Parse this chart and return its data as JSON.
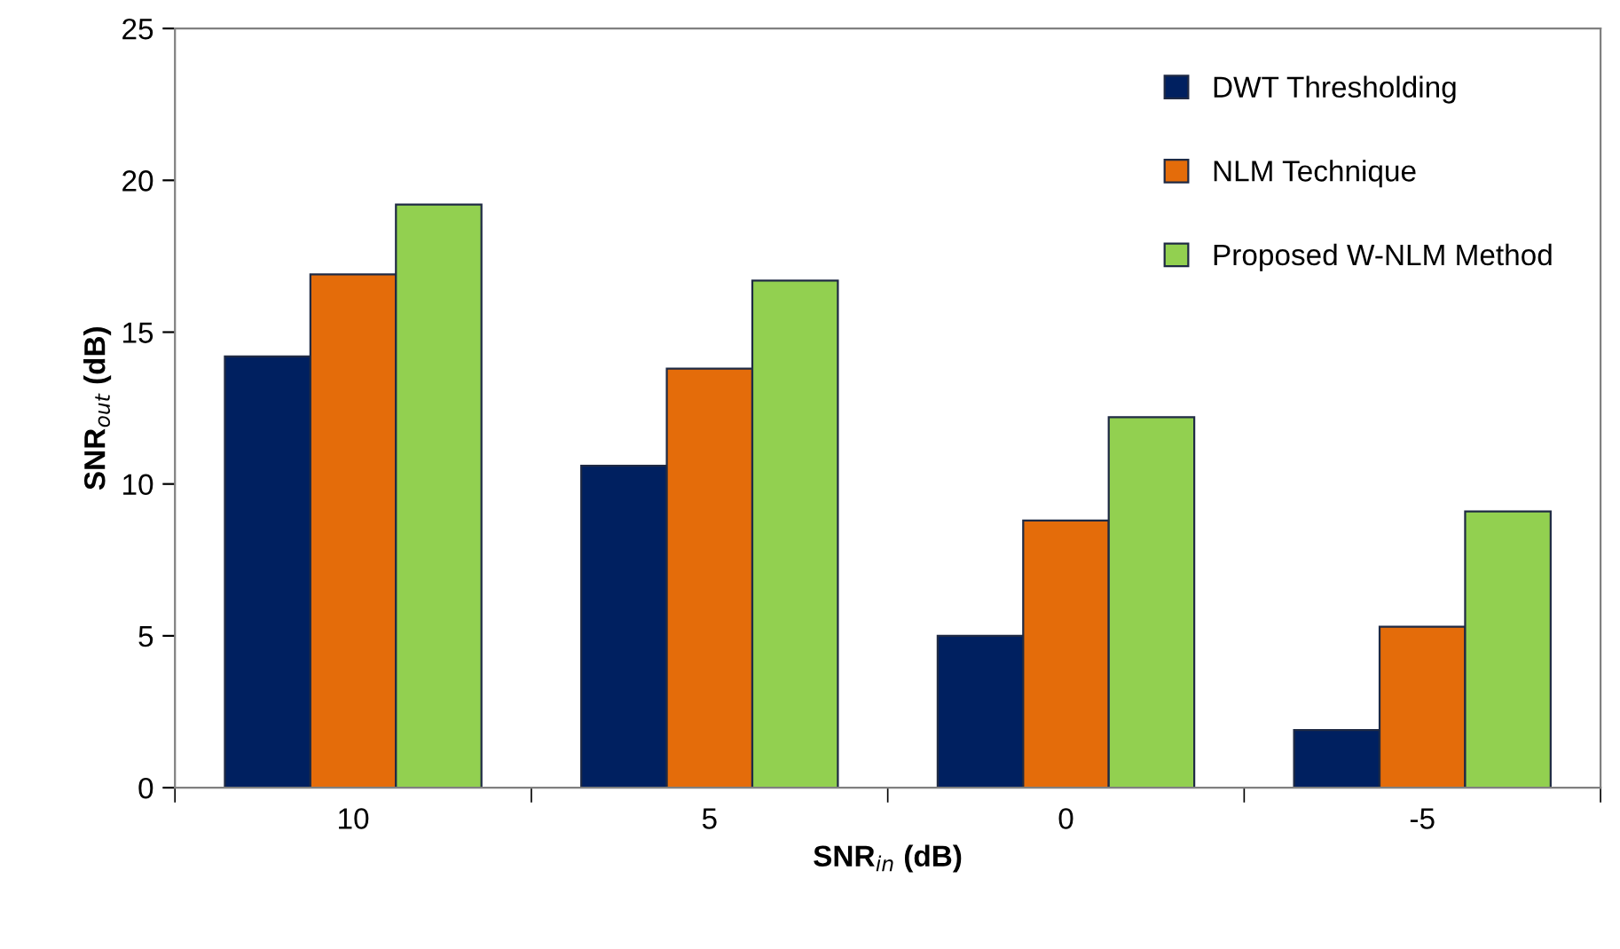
{
  "chart_data": {
    "type": "bar",
    "xlabel": "SNR$_{in}$ (dB)",
    "ylabel": "SNR$_{out}$ (dB)",
    "categories": [
      "10",
      "5",
      "0",
      "-5"
    ],
    "series": [
      {
        "name": "DWT Thresholding",
        "color": "#002060",
        "values": [
          14.2,
          10.6,
          5.0,
          1.9
        ]
      },
      {
        "name": "NLM Technique",
        "color": "#e46c0a",
        "values": [
          16.9,
          13.8,
          8.8,
          5.3
        ]
      },
      {
        "name": "Proposed W-NLM Method",
        "color": "#92d050",
        "values": [
          19.2,
          16.7,
          12.2,
          9.1
        ]
      }
    ],
    "ylim": [
      0,
      25
    ],
    "yticks": [
      0,
      5,
      10,
      15,
      20,
      25
    ],
    "grid": false,
    "legend": "top right"
  }
}
